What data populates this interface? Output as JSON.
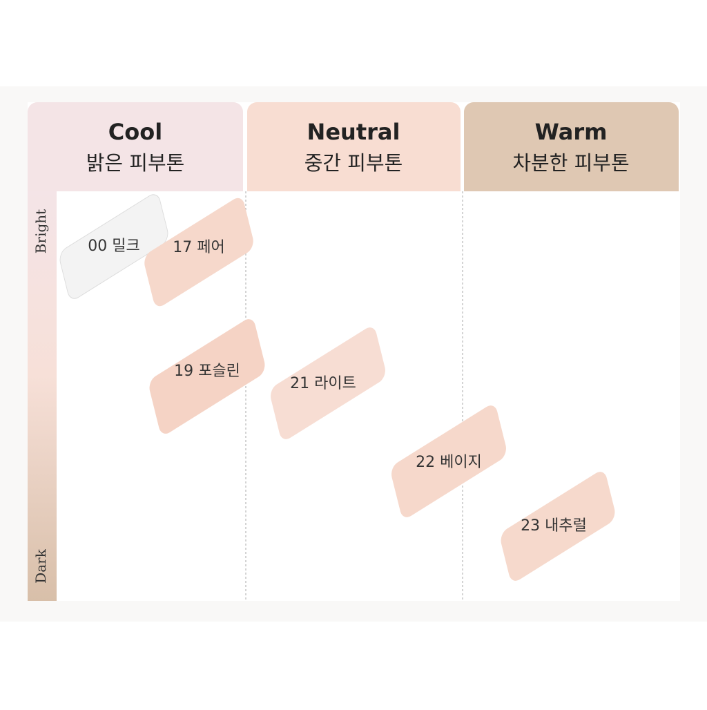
{
  "columns": [
    {
      "title": "Cool",
      "subtitle": "밝은 피부톤"
    },
    {
      "title": "Neutral",
      "subtitle": "중간 피부톤"
    },
    {
      "title": "Warm",
      "subtitle": "차분한 피부톤"
    }
  ],
  "axis": {
    "top": "Bright",
    "bottom": "Dark"
  },
  "swatches": [
    {
      "label": "00 밀크"
    },
    {
      "label": "17 페어"
    },
    {
      "label": "19 포슬린"
    },
    {
      "label": "21 라이트"
    },
    {
      "label": "22 베이지"
    },
    {
      "label": "23 내추럴"
    }
  ]
}
